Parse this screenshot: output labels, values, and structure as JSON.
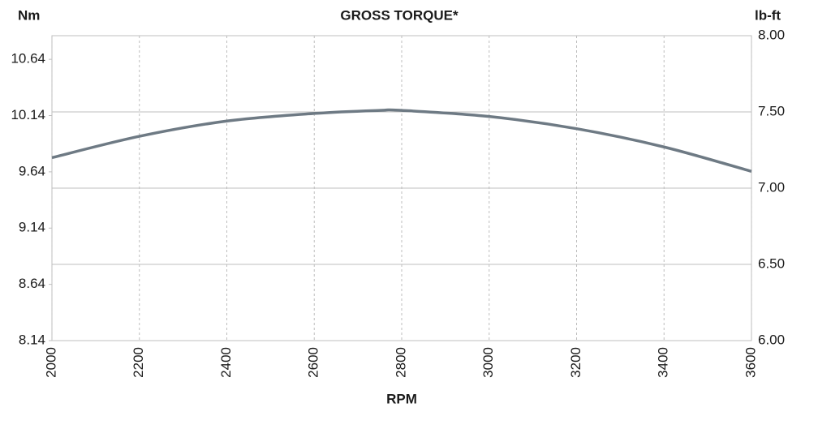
{
  "chart_data": {
    "type": "line",
    "title": "GROSS TORQUE*",
    "ylabel": "Nm",
    "y2label": "lb-ft",
    "xlabel": "RPM",
    "x": [
      2000,
      2200,
      2400,
      2600,
      2750,
      2800,
      3000,
      3200,
      3400,
      3600
    ],
    "series": [
      {
        "name": "Gross torque",
        "color": "#6e7a84",
        "axis": "y2",
        "values": [
          7.2,
          7.34,
          7.44,
          7.49,
          7.51,
          7.51,
          7.47,
          7.39,
          7.27,
          7.11
        ]
      }
    ],
    "xlim": [
      2000,
      3600
    ],
    "xticks": [
      2000,
      2200,
      2400,
      2600,
      2800,
      3000,
      3200,
      3400,
      3600
    ],
    "ylim": [
      8.14,
      10.85
    ],
    "yticks": [
      8.14,
      8.64,
      9.14,
      9.64,
      10.14,
      10.64
    ],
    "y2lim": [
      6,
      8
    ],
    "y2ticks": [
      {
        "value": 6,
        "label": "6.00"
      },
      {
        "value": 6.5,
        "label": "6.50"
      },
      {
        "value": 7,
        "label": "7.00"
      },
      {
        "value": 7.5,
        "label": "7.50"
      },
      {
        "value": 8,
        "label": "8.00"
      }
    ],
    "grid": true
  }
}
